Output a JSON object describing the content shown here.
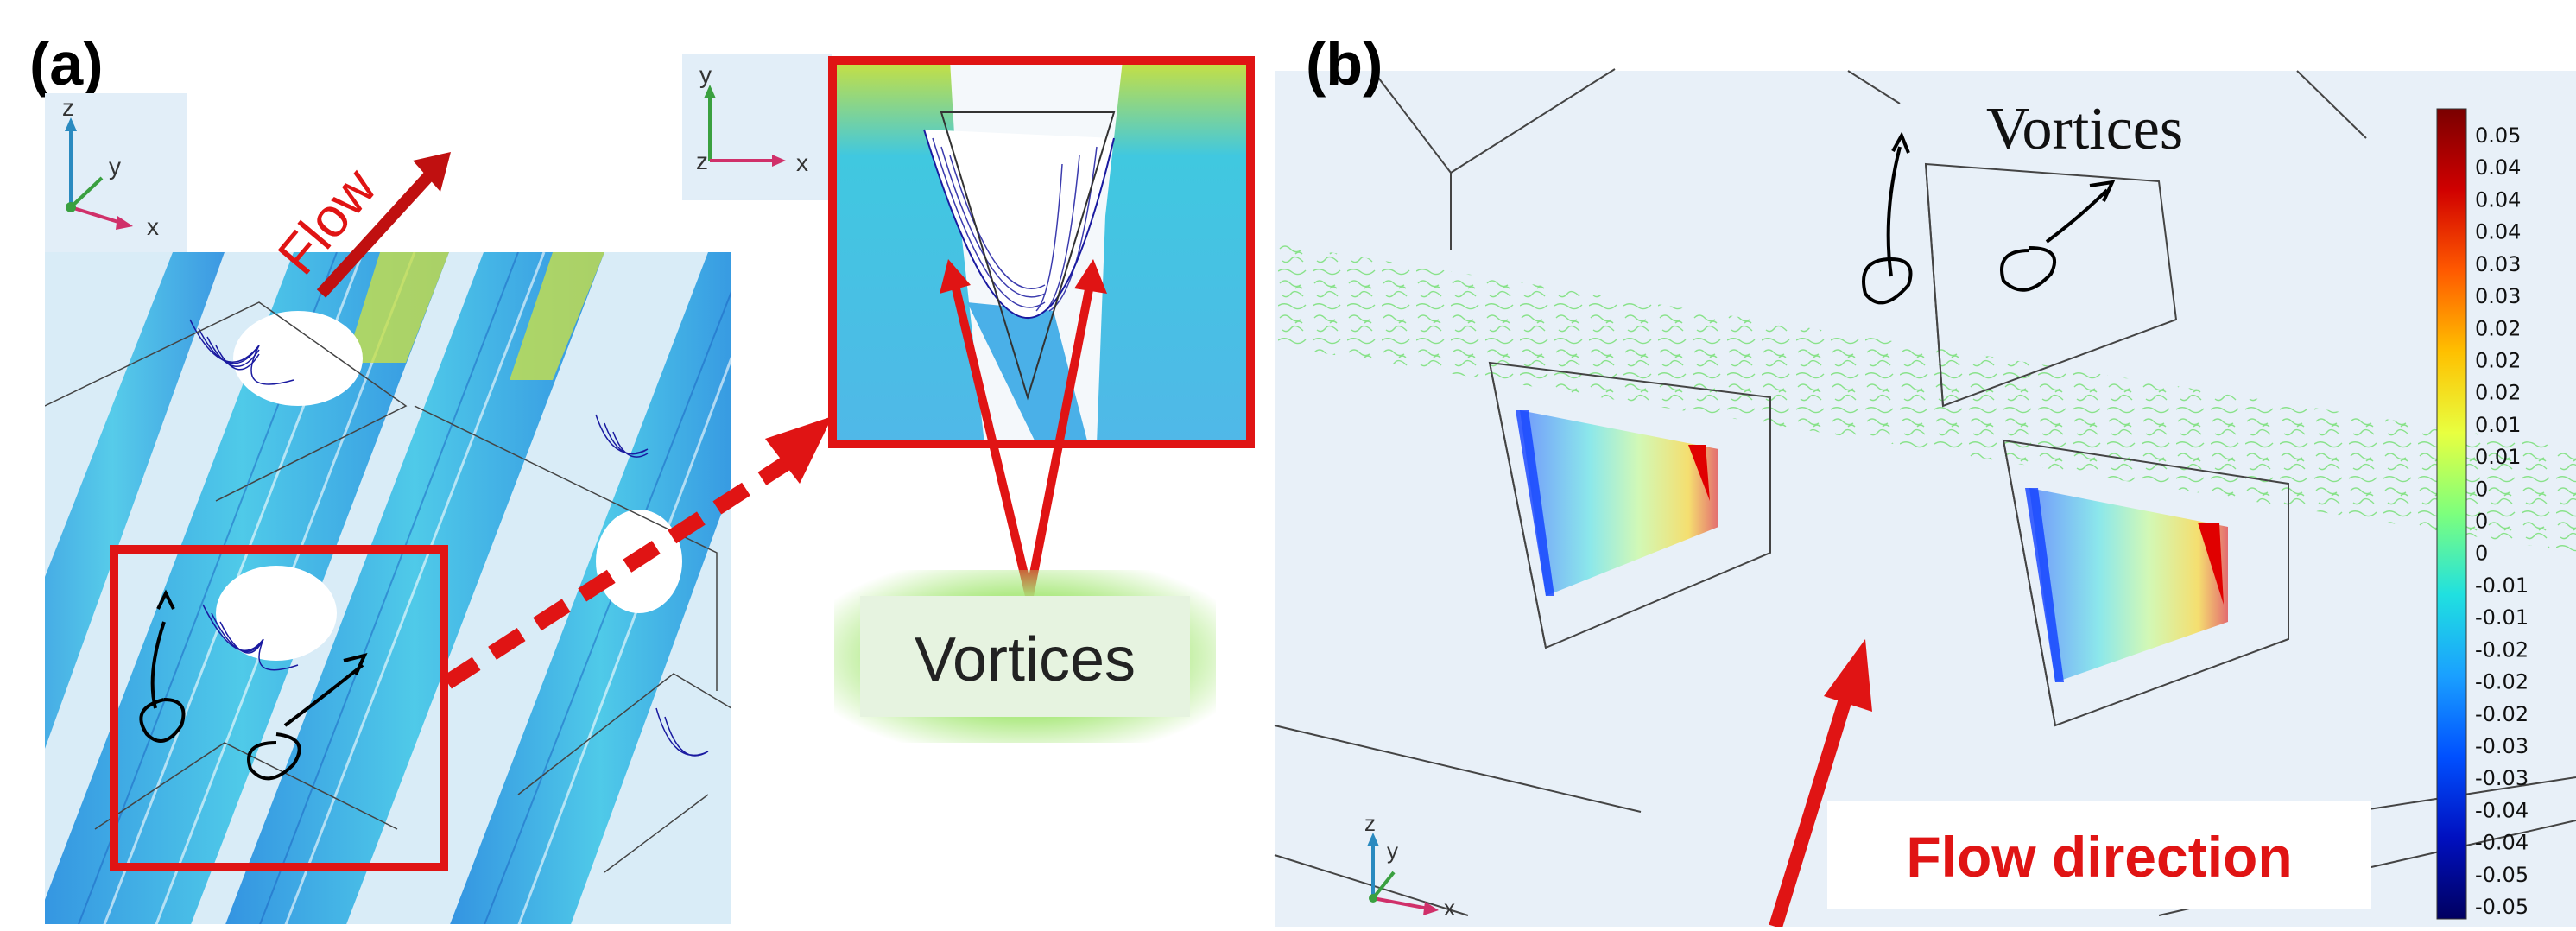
{
  "panel_a": {
    "label": "(a)",
    "flow_label": "Flow",
    "axes_left": {
      "z": "z",
      "y": "y",
      "x": "x"
    },
    "axes_inset": {
      "y": "y",
      "z": "z",
      "x": "x"
    },
    "vortices_label": "Vortices"
  },
  "panel_b": {
    "label": "(b)",
    "vortices_label": "Vortices",
    "flow_direction_label": "Flow direction",
    "axes": {
      "z": "z",
      "y": "y",
      "x": "x"
    },
    "colorbar": {
      "labels": [
        "0.05",
        "0.04",
        "0.04",
        "0.04",
        "0.03",
        "0.03",
        "0.02",
        "0.02",
        "0.02",
        "0.01",
        "0.01",
        "0",
        "0",
        "0",
        "-0.01",
        "-0.01",
        "-0.02",
        "-0.02",
        "-0.02",
        "-0.03",
        "-0.03",
        "-0.04",
        "-0.04",
        "-0.05",
        "-0.05"
      ],
      "colors": [
        "#7a0000",
        "#d00000",
        "#ff5a00",
        "#ffc000",
        "#e8ff40",
        "#7dff7d",
        "#20e0e0",
        "#1aa0ff",
        "#0050ff",
        "#0010c0",
        "#000060"
      ]
    }
  },
  "colors": {
    "accent_red": "#e01414",
    "streamline_blue": "#3aa0e8",
    "vortex_navy": "#1a1aa0"
  }
}
